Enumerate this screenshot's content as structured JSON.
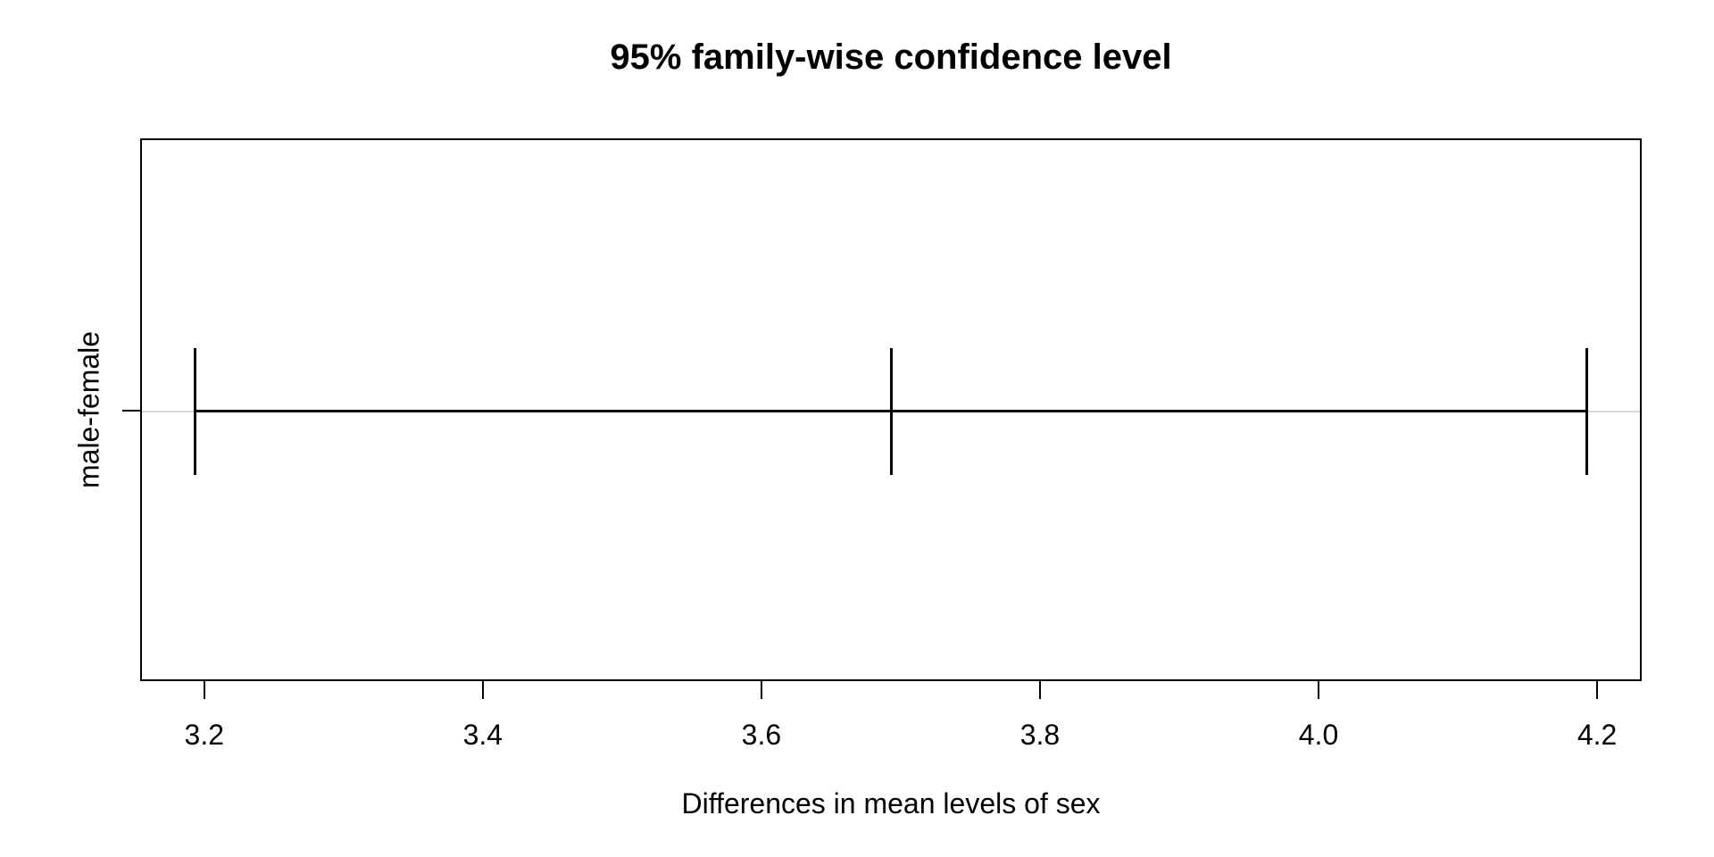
{
  "title": "95% family-wise confidence level",
  "axes": {
    "x_label": "Differences in mean levels of sex",
    "y_category_label": "male-female"
  },
  "colors": {
    "foreground": "#000000",
    "background": "#ffffff",
    "reference_line": "#d9d9d9"
  },
  "chart_data": {
    "type": "errorbar",
    "orientation": "horizontal",
    "title": "95% family-wise confidence level",
    "xlabel": "Differences in mean levels of sex",
    "ylabel": "",
    "confidence_level": "95%",
    "categories": [
      "male-female"
    ],
    "intervals": [
      {
        "label": "male-female",
        "lower": 3.193,
        "center": 3.693,
        "upper": 4.192
      }
    ],
    "xlim": [
      3.154,
      4.232
    ],
    "x_ticks": [
      3.2,
      3.4,
      3.6,
      3.8,
      4.0,
      4.2
    ],
    "grid": false,
    "legend": "none"
  }
}
